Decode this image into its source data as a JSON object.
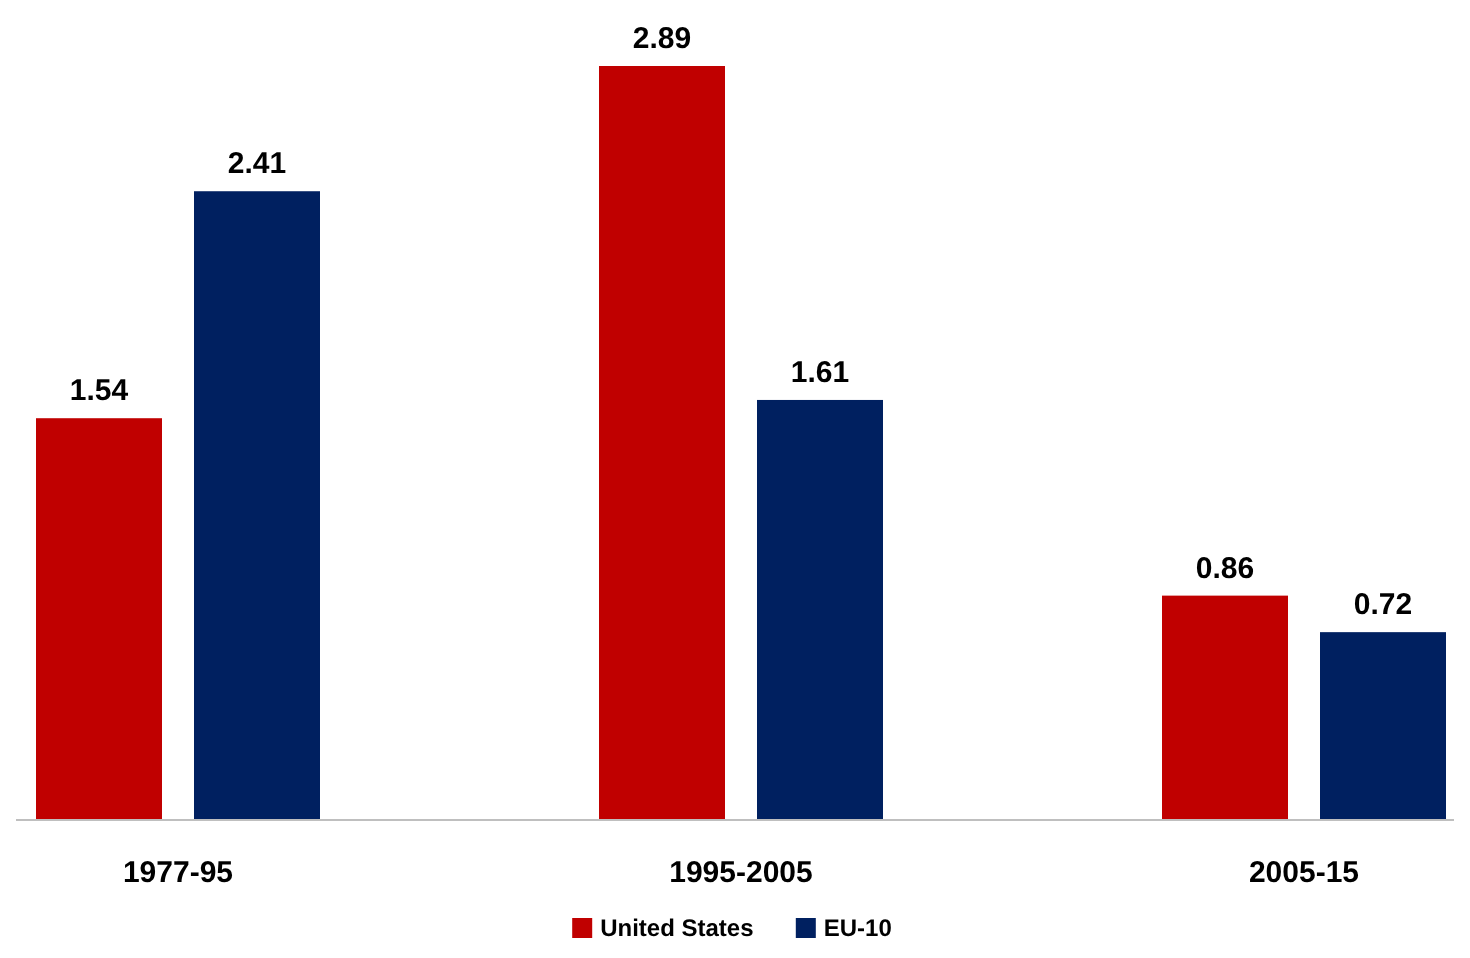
{
  "chart_data": {
    "type": "bar",
    "categories": [
      "1977-95",
      "1995-2005",
      "2005-15"
    ],
    "series": [
      {
        "name": "United States",
        "color": "#c00000",
        "values": [
          1.54,
          2.89,
          0.86
        ]
      },
      {
        "name": "EU-10",
        "color": "#002060",
        "values": [
          2.41,
          1.61,
          0.72
        ]
      }
    ],
    "data_labels": true,
    "legend": "bottom"
  }
}
